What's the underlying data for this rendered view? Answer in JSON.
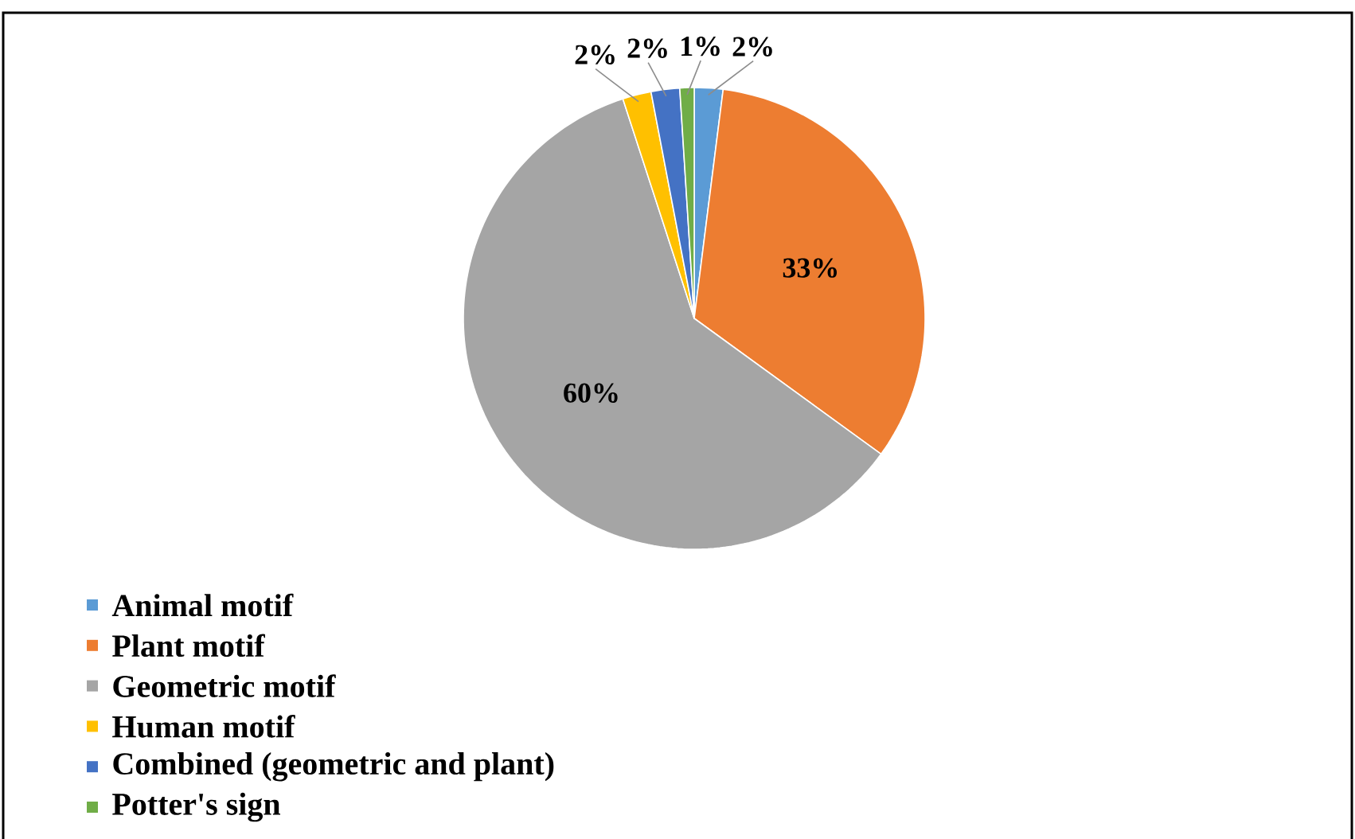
{
  "chart_data": {
    "type": "pie",
    "categories": [
      "Animal motif",
      "Plant motif",
      "Geometric motif",
      "Human motif",
      "Combined (geometric and plant)",
      "Potter's sign"
    ],
    "values": [
      2,
      33,
      60,
      2,
      2,
      1
    ],
    "colors": [
      "#5b9bd5",
      "#ed7d31",
      "#a5a5a5",
      "#ffc000",
      "#4472c4",
      "#70ad47"
    ],
    "value_labels": [
      "2%",
      "33%",
      "60%",
      "2%",
      "2%",
      "1%"
    ],
    "legend": "bottom left"
  }
}
